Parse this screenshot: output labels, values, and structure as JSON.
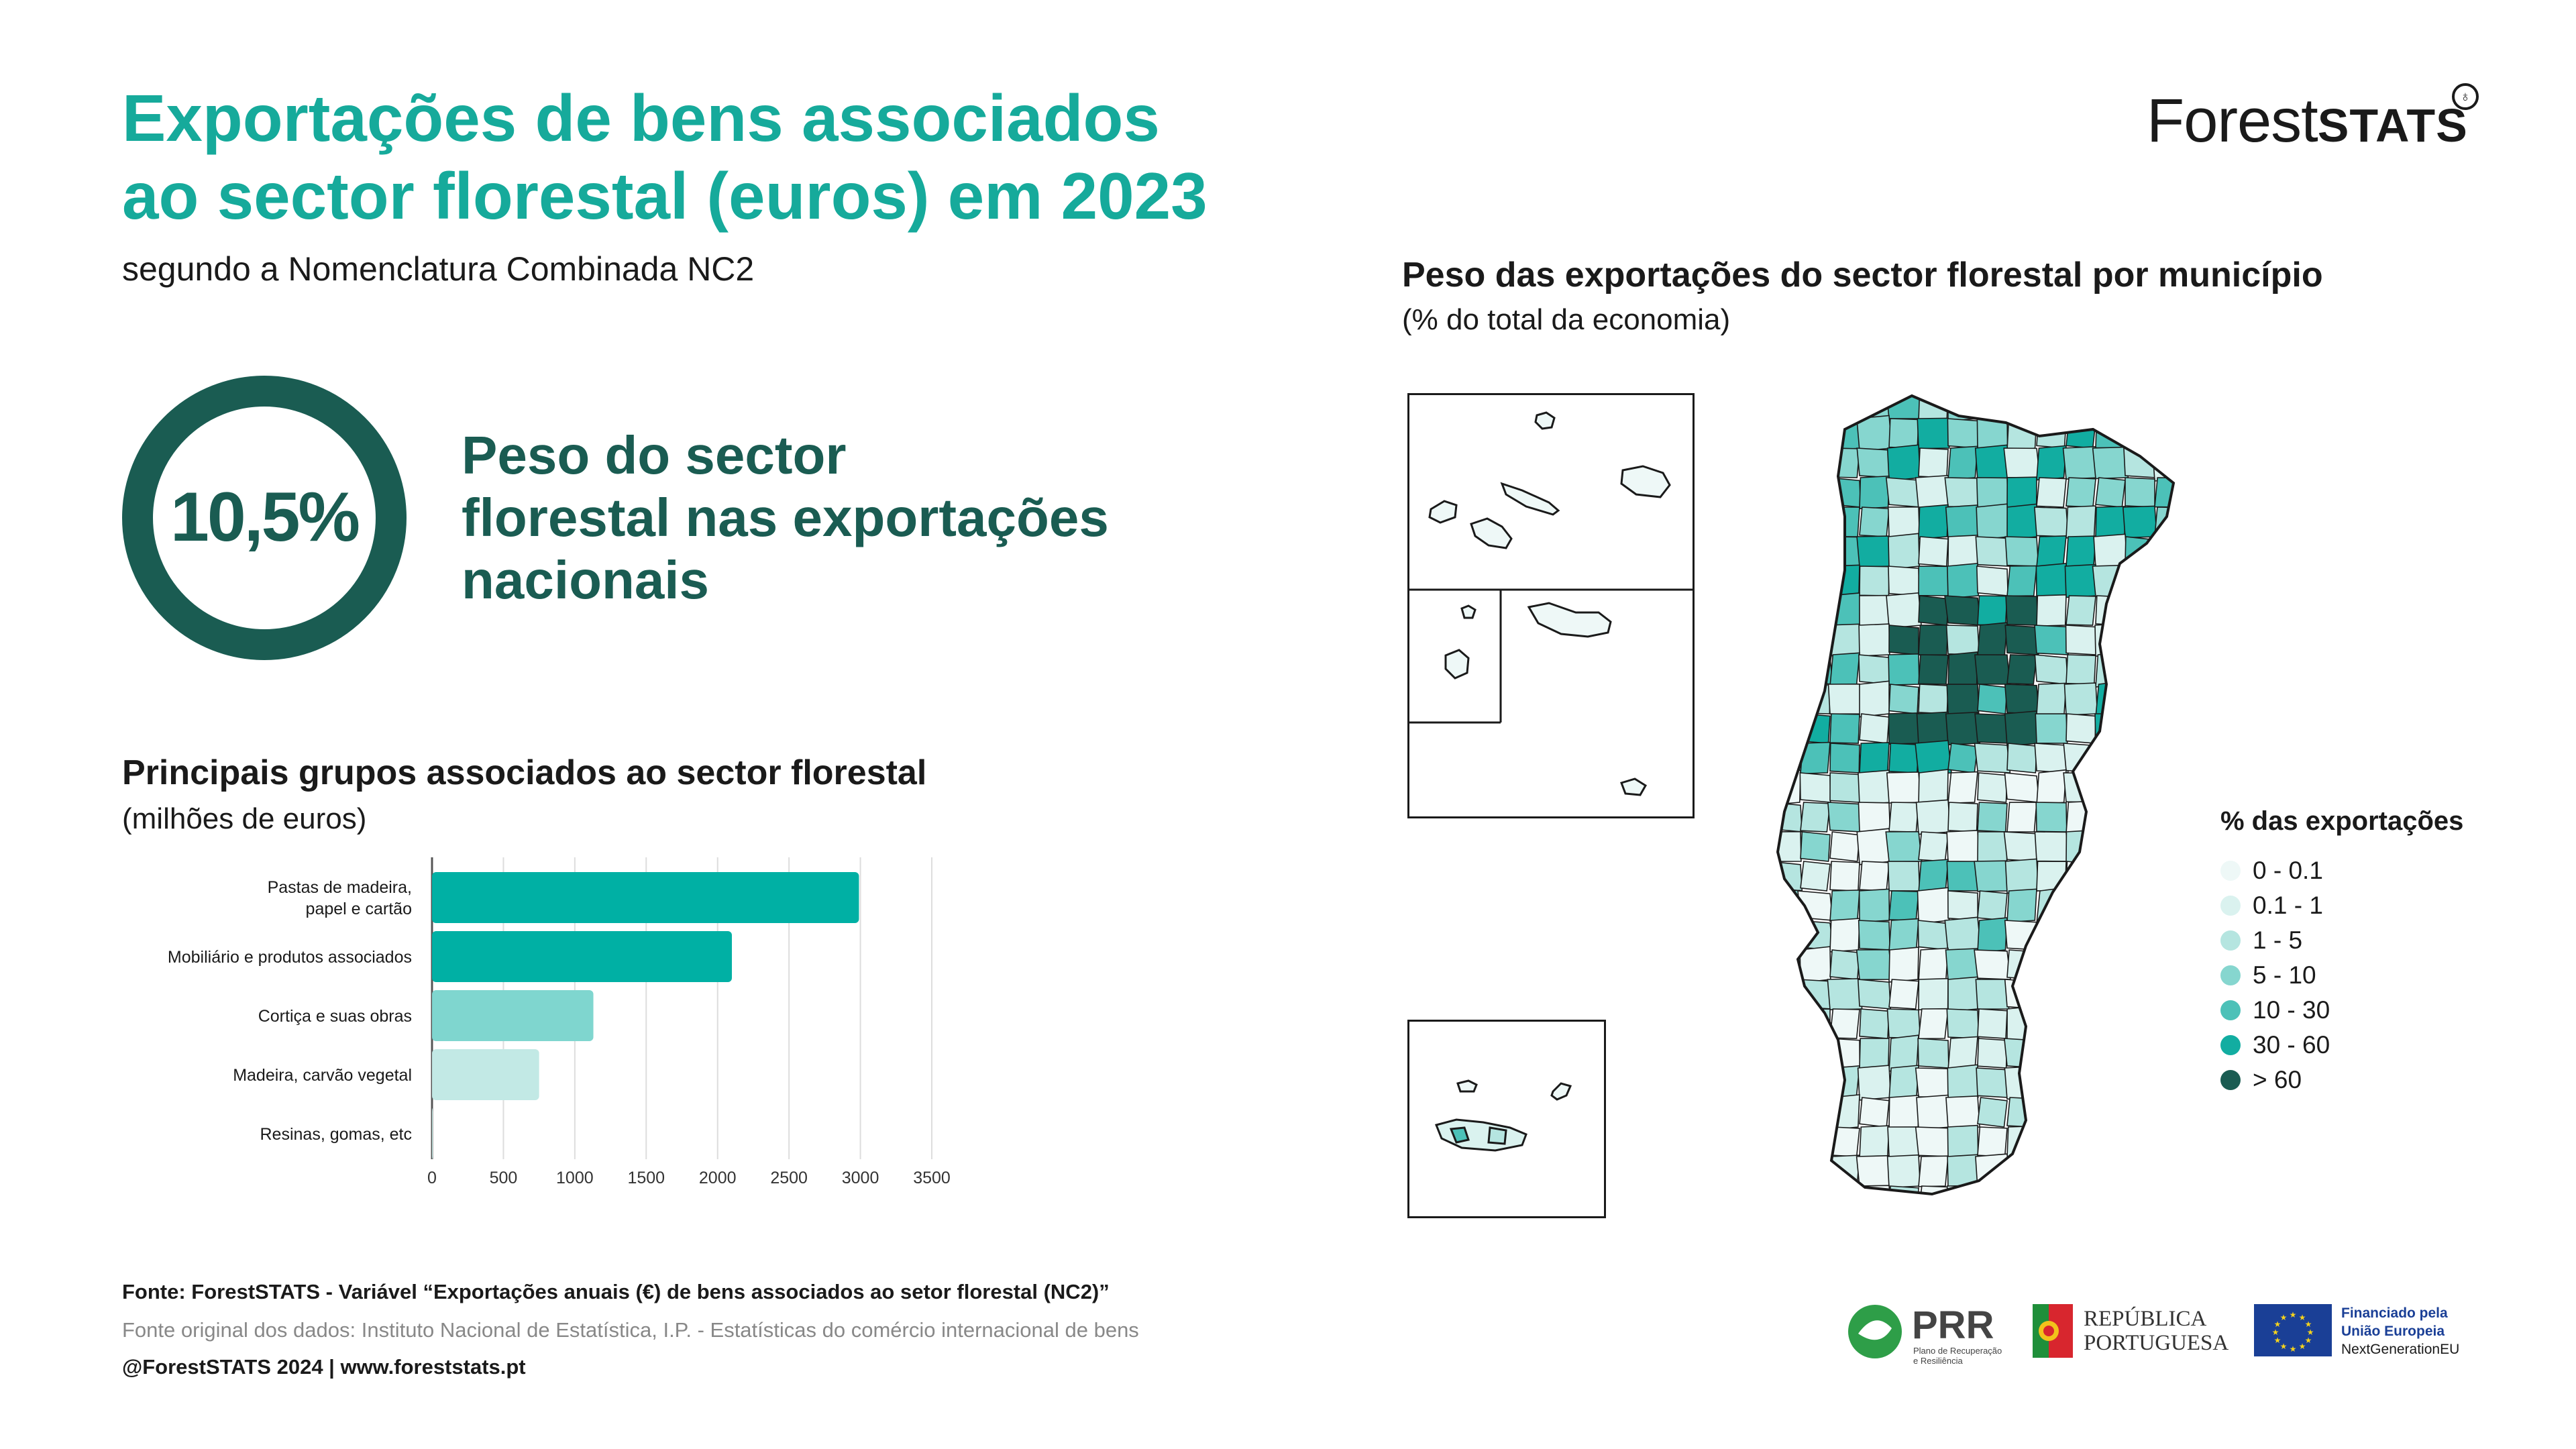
{
  "header": {
    "title_line1": "Exportações de bens associados",
    "title_line2": "ao sector florestal (euros) em 2023",
    "subtitle": "segundo a Nomenclatura Combinada NC2",
    "logo_part1": "Forest",
    "logo_part2": "STATS"
  },
  "kpi": {
    "value": "10,5%",
    "line1": "Peso do sector",
    "line2": "florestal nas exportações",
    "line3": "nacionais",
    "ring_color": "#1a5c52"
  },
  "bar_section": {
    "title": "Principais grupos associados ao sector florestal",
    "unit": "(milhões de euros)"
  },
  "chart_data": [
    {
      "type": "bar",
      "orientation": "horizontal",
      "title": "Principais grupos associados ao sector florestal",
      "ylabel": "(milhões de euros)",
      "categories": [
        "Pastas de madeira,|papel e cartão",
        "Mobiliário e produtos associados",
        "Cortiça e suas obras",
        "Madeira, carvão vegetal",
        "Resinas, gomas, etc"
      ],
      "values": [
        2990,
        2100,
        1130,
        750,
        5
      ],
      "colors": [
        "#00b0a4",
        "#00b0a4",
        "#7fd6cf",
        "#c2e9e5",
        "#c2e9e5"
      ],
      "xlim": [
        0,
        3500
      ],
      "xticks": [
        0,
        500,
        1000,
        1500,
        2000,
        2500,
        3000,
        3500
      ],
      "grid": true
    },
    {
      "type": "other",
      "title": "Peso das exportações do sector florestal por município",
      "subtitle": "(% do total da economia)",
      "legend_title": "% das exportações",
      "legend": [
        {
          "label": "0 - 0.1",
          "color": "#eef8f7"
        },
        {
          "label": "0.1 - 1",
          "color": "#daf2ef"
        },
        {
          "label": "1 - 5",
          "color": "#b5e5e0"
        },
        {
          "label": "5 - 10",
          "color": "#86d6cf"
        },
        {
          "label": "10 - 30",
          "color": "#4cc1b8"
        },
        {
          "label": "30 - 60",
          "color": "#12ada1"
        },
        {
          "label": "> 60",
          "color": "#1a5c52"
        }
      ],
      "legend_placement": "right"
    }
  ],
  "map_section": {
    "title": "Peso das exportações do sector florestal por município",
    "unit": "(% do total da economia)"
  },
  "footer": {
    "source": "Fonte: ForestSTATS - Variável “Exportações anuais (€) de bens associados ao setor florestal (NC2)”",
    "original": "Fonte original dos dados: Instituto Nacional de Estatística, I.P. - Estatísticas do comércio internacional de bens",
    "credit": "@ForestSTATS 2024 | www.foreststats.pt"
  },
  "logos": {
    "prr": "PRR",
    "prr_sub1": "Plano de Recuperação",
    "prr_sub2": "e Resiliência",
    "rep1": "REPÚBLICA",
    "rep2": "PORTUGUESA",
    "eu1": "Financiado pela",
    "eu2": "União Europeia",
    "eu3": "NextGenerationEU"
  }
}
